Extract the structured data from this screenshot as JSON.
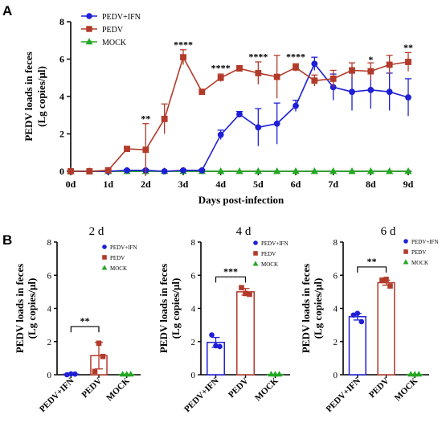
{
  "panel_labels": {
    "a": "A",
    "b": "B"
  },
  "chart_data": [
    {
      "type": "line",
      "panel": "A",
      "title": "",
      "xlabel": "Days post-infection",
      "ylabel_lines": [
        "PEDV loads in feces",
        "(Lg copies/μl)"
      ],
      "ylim": [
        0,
        8
      ],
      "yticks": [
        0,
        2,
        4,
        6,
        8
      ],
      "xlim": [
        0,
        9
      ],
      "xticks": [
        0,
        1,
        2,
        3,
        4,
        5,
        6,
        7,
        8,
        9
      ],
      "xtick_labels": [
        "0d",
        "1d",
        "2d",
        "3d",
        "4d",
        "5d",
        "6d",
        "7d",
        "8d",
        "9d"
      ],
      "legend_position": "top-left",
      "x": [
        0,
        0.5,
        1,
        1.5,
        2,
        2.5,
        3,
        3.5,
        4,
        4.5,
        5,
        5.5,
        6,
        6.5,
        7,
        7.5,
        8,
        8.5,
        9
      ],
      "series": [
        {
          "name": "PEDV+IFN",
          "color": "#1f1fd6",
          "marker": "circle",
          "values": [
            0,
            0,
            0,
            0.05,
            0.05,
            0,
            0.05,
            0.05,
            1.95,
            3.05,
            2.35,
            2.55,
            3.5,
            5.75,
            4.5,
            4.25,
            4.35,
            4.25,
            3.95
          ],
          "err": [
            0,
            0,
            0,
            0.05,
            0.05,
            0,
            0.05,
            0.05,
            0.25,
            0.15,
            1.0,
            1.1,
            0.3,
            0.35,
            0.7,
            1.0,
            1.0,
            1.0,
            1.0
          ]
        },
        {
          "name": "PEDV",
          "color": "#b23a2a",
          "marker": "square",
          "values": [
            0,
            0,
            0.05,
            1.2,
            1.15,
            2.8,
            6.1,
            4.25,
            5.0,
            5.5,
            5.25,
            5.05,
            5.55,
            4.85,
            4.95,
            5.4,
            5.35,
            5.7,
            5.85
          ],
          "err": [
            0,
            0,
            0.05,
            0.1,
            1.4,
            0.8,
            0.4,
            0.1,
            0.2,
            0.15,
            0.6,
            1.15,
            0.2,
            0.3,
            0.45,
            0.4,
            0.45,
            0.5,
            0.5
          ]
        },
        {
          "name": "MOCK",
          "color": "#22a722",
          "marker": "triangle",
          "values": [
            0,
            0,
            0,
            0,
            0,
            0,
            0,
            0,
            0,
            0,
            0,
            0,
            0,
            0,
            0,
            0,
            0,
            0,
            0
          ],
          "err": [
            0,
            0,
            0,
            0,
            0,
            0,
            0,
            0,
            0,
            0,
            0,
            0,
            0,
            0,
            0,
            0,
            0,
            0,
            0
          ]
        }
      ],
      "annotations": [
        {
          "x": 2,
          "y": 2.65,
          "text": "**"
        },
        {
          "x": 3,
          "y": 6.6,
          "text": "****"
        },
        {
          "x": 4,
          "y": 5.35,
          "text": "****"
        },
        {
          "x": 5,
          "y": 5.95,
          "text": "****"
        },
        {
          "x": 6,
          "y": 5.95,
          "text": "****"
        },
        {
          "x": 8,
          "y": 5.8,
          "text": "*"
        },
        {
          "x": 9,
          "y": 6.45,
          "text": "**"
        }
      ]
    },
    {
      "type": "bar",
      "panel": "B",
      "title": "2 d",
      "ylabel_lines": [
        "PEDV loads in feces",
        "(Lg copies/μl)"
      ],
      "ylim": [
        0,
        8
      ],
      "yticks": [
        0,
        2,
        4,
        6,
        8
      ],
      "categories": [
        "PEDV+IFN",
        "PEDV",
        "MOCK"
      ],
      "values": [
        0.03,
        1.15,
        0.02
      ],
      "err": [
        0.02,
        0.8,
        0.02
      ],
      "points": [
        [
          0,
          0.05,
          0.04
        ],
        [
          0.2,
          1.9,
          1.1
        ],
        [
          0.03,
          0.03,
          0.03
        ]
      ],
      "colors": [
        "#1f1fd6",
        "#b23a2a",
        "#22a722"
      ],
      "significance": {
        "between": [
          0,
          1
        ],
        "text": "**",
        "y": 2.9
      },
      "legend": [
        "PEDV+IFN",
        "PEDV",
        "MOCK"
      ],
      "legend_position": "top-right"
    },
    {
      "type": "bar",
      "panel": "B",
      "title": "4 d",
      "ylabel_lines": [
        "PEDV loads in feces",
        "(Lg copies/μl)"
      ],
      "ylim": [
        0,
        8
      ],
      "yticks": [
        0,
        2,
        4,
        6,
        8
      ],
      "categories": [
        "PEDV+IFN",
        "PEDV",
        "MOCK"
      ],
      "values": [
        1.95,
        5.0,
        0.02
      ],
      "err": [
        0.3,
        0.2,
        0.02
      ],
      "points": [
        [
          2.4,
          1.75,
          1.7
        ],
        [
          5.25,
          4.9,
          4.85
        ],
        [
          0.03,
          0.03,
          0.03
        ]
      ],
      "colors": [
        "#1f1fd6",
        "#b23a2a",
        "#22a722"
      ],
      "significance": {
        "between": [
          0,
          1
        ],
        "text": "***",
        "y": 5.9
      },
      "legend": [
        "PEDV+IFN",
        "PEDV",
        "MOCK"
      ],
      "legend_position": "top-right"
    },
    {
      "type": "bar",
      "panel": "B",
      "title": "6 d",
      "ylabel_lines": [
        "PEDV loads in feces",
        "(Lg copies/μl)"
      ],
      "ylim": [
        0,
        8
      ],
      "yticks": [
        0,
        2,
        4,
        6,
        8
      ],
      "categories": [
        "PEDV+IFN",
        "PEDV",
        "MOCK"
      ],
      "values": [
        3.5,
        5.55,
        0.02
      ],
      "err": [
        0.2,
        0.15,
        0.02
      ],
      "points": [
        [
          3.6,
          3.7,
          3.2
        ],
        [
          5.7,
          5.75,
          5.35
        ],
        [
          0.03,
          0.03,
          0.03
        ]
      ],
      "colors": [
        "#1f1fd6",
        "#b23a2a",
        "#22a722"
      ],
      "significance": {
        "between": [
          0,
          1
        ],
        "text": "**",
        "y": 6.5
      },
      "legend": [
        "PEDV+IFN",
        "PEDV",
        "MOCK"
      ],
      "legend_position": "top-right"
    }
  ]
}
